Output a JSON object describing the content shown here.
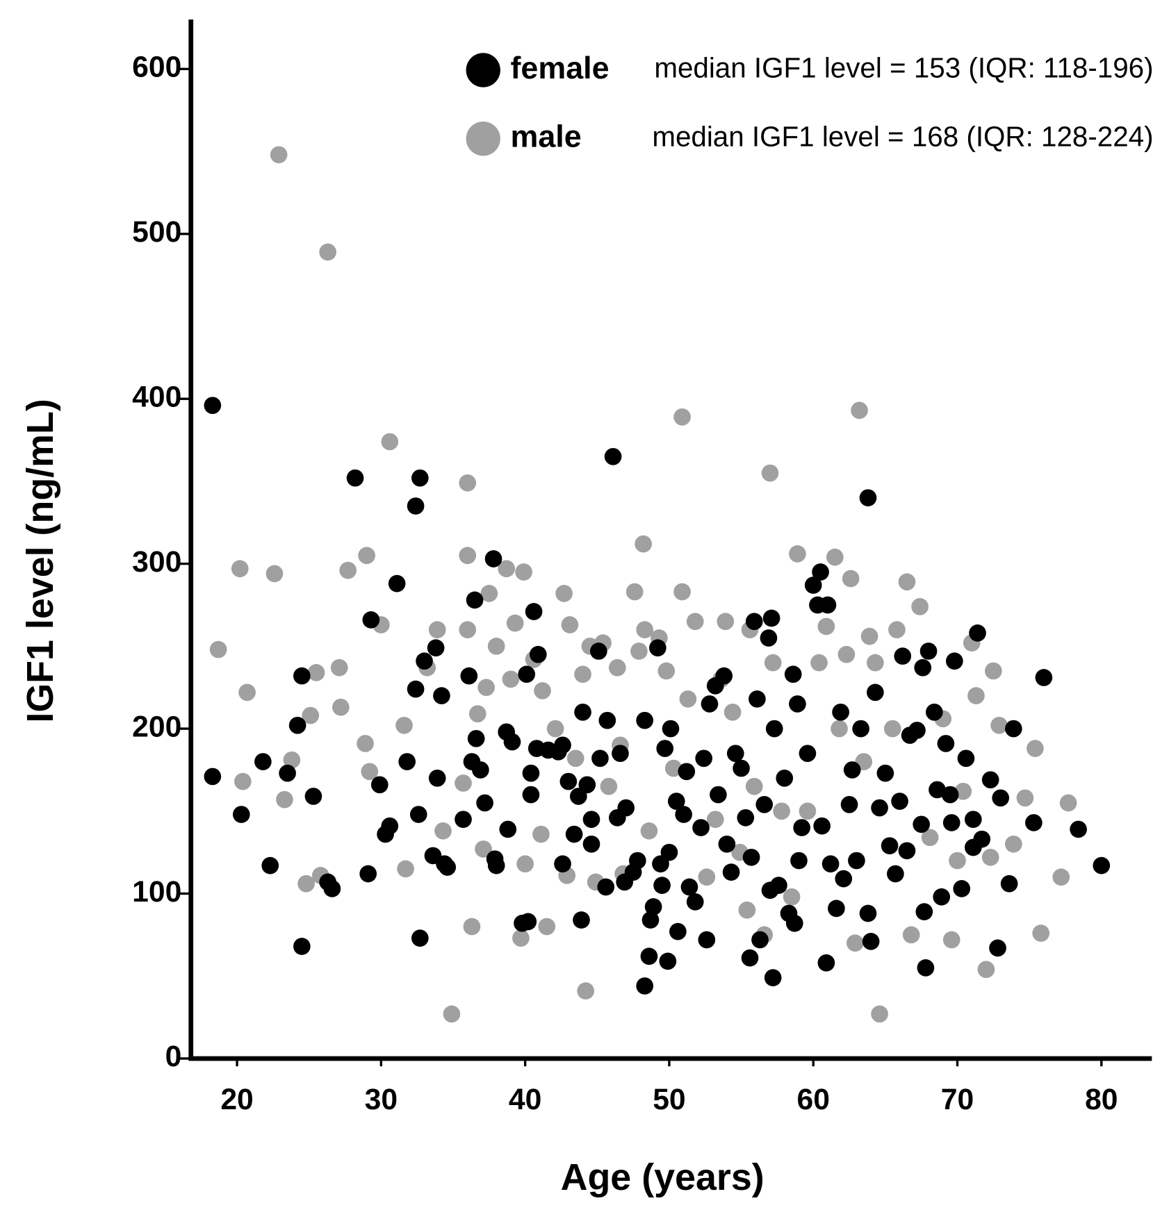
{
  "chart_data": {
    "type": "scatter",
    "x_label": "Age (years)",
    "y_label": "IGF1 level (ng/mL)",
    "xlim": [
      16.8,
      83.5
    ],
    "ylim": [
      0,
      630
    ],
    "xticks": [
      20,
      30,
      40,
      50,
      60,
      70,
      80
    ],
    "yticks": [
      0,
      100,
      200,
      300,
      400,
      500,
      600
    ],
    "grid": false,
    "legend": "top-right",
    "annotations": [
      "median IGF1 level = 153 (IQR: 118-196)",
      "median IGF1 level = 168 (IQR: 128-224)"
    ],
    "series": [
      {
        "name": "female",
        "color": "#000000",
        "x": [
          18.3,
          18.3,
          20.3,
          21.8,
          22.3,
          23.5,
          24.2,
          24.5,
          24.5,
          25.3,
          26.3,
          26.6,
          28.2,
          29.3,
          29.1,
          29.9,
          30.3,
          30.6,
          31.1,
          31.8,
          32.4,
          32.4,
          32.6,
          32.7,
          32.7,
          33,
          33.6,
          33.8,
          33.9,
          34.2,
          34.4,
          34.6,
          35.7,
          36.1,
          36.3,
          36.5,
          36.6,
          36.9,
          37.2,
          37.8,
          37.9,
          38,
          38.7,
          38.8,
          39.1,
          39.8,
          40.2,
          40.1,
          40.4,
          40.4,
          40.6,
          40.8,
          40.9,
          41.6,
          42.3,
          42.6,
          42.6,
          43,
          43.4,
          43.7,
          43.9,
          44,
          44.3,
          44.6,
          44.6,
          45.1,
          45.2,
          45.6,
          45.7,
          46.1,
          46.4,
          46.6,
          46.9,
          47,
          47.5,
          47.8,
          48.3,
          48.3,
          48.6,
          48.7,
          48.9,
          49.2,
          49.4,
          49.5,
          49.7,
          49.9,
          50,
          50.1,
          50.5,
          50.6,
          51,
          51.2,
          51.4,
          51.8,
          52.2,
          52.4,
          52.6,
          52.8,
          53.2,
          53.4,
          53.8,
          54,
          54.3,
          54.6,
          55,
          55.3,
          55.6,
          55.7,
          55.9,
          56.1,
          56.3,
          56.6,
          56.9,
          57,
          57.1,
          57.2,
          57.3,
          57.6,
          58,
          58.3,
          58.6,
          58.7,
          58.9,
          59,
          59.2,
          59.6,
          60,
          60.3,
          60.5,
          60.6,
          60.9,
          61,
          61.2,
          61.6,
          61.9,
          62.1,
          62.5,
          62.7,
          63,
          63.3,
          63.8,
          63.8,
          64,
          64.3,
          64.6,
          65,
          65.3,
          65.7,
          66,
          66.2,
          66.5,
          66.7,
          67.2,
          67.5,
          67.6,
          67.7,
          67.8,
          68,
          68.4,
          68.6,
          68.9,
          69.2,
          69.5,
          69.8,
          69.6,
          70.3,
          70.6,
          71.1,
          71.1,
          71.4,
          71.7,
          72.3,
          72.8,
          73,
          73.6,
          73.9,
          75.3,
          76,
          78.4,
          80
        ],
        "values": [
          396,
          171,
          148,
          180,
          117,
          173,
          202,
          232,
          68,
          159,
          107,
          103,
          352,
          266,
          112,
          166,
          136,
          141,
          288,
          180,
          224,
          335,
          148,
          352,
          73,
          241,
          123,
          249,
          170,
          220,
          118,
          116,
          145,
          232,
          180,
          278,
          194,
          175,
          155,
          303,
          121,
          117,
          198,
          139,
          192,
          82,
          83,
          233,
          173,
          160,
          271,
          188,
          245,
          187,
          186,
          190,
          118,
          168,
          136,
          159,
          84,
          210,
          166,
          145,
          130,
          247,
          182,
          104,
          205,
          365,
          146,
          185,
          107,
          152,
          113,
          120,
          205,
          44,
          62,
          84,
          92,
          249,
          118,
          105,
          188,
          59,
          125,
          200,
          156,
          77,
          148,
          174,
          104,
          95,
          140,
          182,
          72,
          215,
          226,
          160,
          232,
          130,
          113,
          185,
          176,
          146,
          61,
          122,
          265,
          218,
          72,
          154,
          255,
          102,
          267,
          49,
          200,
          105,
          170,
          88,
          233,
          82,
          215,
          120,
          140,
          185,
          287,
          275,
          295,
          141,
          58,
          275,
          118,
          91,
          210,
          109,
          154,
          175,
          120,
          200,
          340,
          88,
          71,
          222,
          152,
          173,
          129,
          112,
          156,
          244,
          126,
          196,
          199,
          142,
          237,
          89,
          55,
          247,
          210,
          163,
          98,
          191,
          160,
          241,
          143,
          103,
          182,
          145,
          128,
          258,
          133,
          169,
          67,
          158,
          106,
          200,
          143,
          231,
          139,
          117
        ]
      },
      {
        "name": "male",
        "color": "#a0a0a0",
        "x": [
          18.7,
          20.2,
          20.4,
          20.7,
          22.6,
          22.9,
          23.3,
          23.8,
          24.8,
          25.1,
          25.5,
          25.8,
          26.3,
          27.1,
          27.2,
          27.7,
          28.9,
          29,
          29.2,
          30,
          30.6,
          31.6,
          31.7,
          33.2,
          33.9,
          34.3,
          34.9,
          35.7,
          36,
          36,
          36,
          36.3,
          36.7,
          37.1,
          37.3,
          37.5,
          38,
          38.7,
          39,
          39.3,
          39.7,
          39.9,
          40,
          40.6,
          41.1,
          41.2,
          41.5,
          42.1,
          42.7,
          42.9,
          43.1,
          43.5,
          44,
          44.2,
          44.5,
          44.9,
          45.4,
          45.8,
          46.4,
          46.6,
          46.8,
          47.6,
          47.9,
          48.2,
          48.3,
          48.6,
          49.3,
          49.8,
          50.3,
          50.9,
          50.9,
          51.3,
          51.8,
          52.6,
          53.2,
          53.6,
          53.9,
          54.4,
          54.9,
          55.4,
          55.6,
          55.9,
          56.6,
          57,
          57.2,
          57.8,
          58.5,
          58.9,
          59.6,
          60.4,
          60.9,
          61.5,
          61.8,
          62.3,
          62.6,
          62.9,
          63.2,
          63.5,
          63.9,
          64.3,
          64.6,
          65.5,
          65.8,
          66.5,
          66.8,
          67.4,
          68.1,
          69,
          69.6,
          70,
          70.4,
          71,
          71.3,
          72,
          72.3,
          72.5,
          72.9,
          73.9,
          74.7,
          75.4,
          75.8,
          77.2,
          77.7
        ],
        "values": [
          248,
          297,
          168,
          222,
          294,
          548,
          157,
          181,
          106,
          208,
          234,
          111,
          489,
          237,
          213,
          296,
          191,
          305,
          174,
          263,
          374,
          202,
          115,
          237,
          260,
          138,
          27,
          167,
          260,
          349,
          305,
          80,
          209,
          127,
          225,
          282,
          250,
          297,
          230,
          264,
          73,
          295,
          118,
          242,
          136,
          223,
          80,
          200,
          282,
          111,
          263,
          182,
          233,
          41,
          250,
          107,
          252,
          165,
          237,
          190,
          112,
          283,
          247,
          312,
          260,
          138,
          255,
          235,
          176,
          389,
          283,
          218,
          265,
          110,
          145,
          230,
          265,
          210,
          125,
          90,
          260,
          165,
          75,
          355,
          240,
          150,
          98,
          306,
          150,
          240,
          262,
          304,
          200,
          245,
          291,
          70,
          393,
          180,
          256,
          240,
          27,
          200,
          260,
          289,
          75,
          274,
          134,
          206,
          72,
          120,
          162,
          252,
          220,
          54,
          122,
          235,
          202,
          130,
          158,
          188,
          76,
          110,
          155
        ]
      }
    ]
  }
}
